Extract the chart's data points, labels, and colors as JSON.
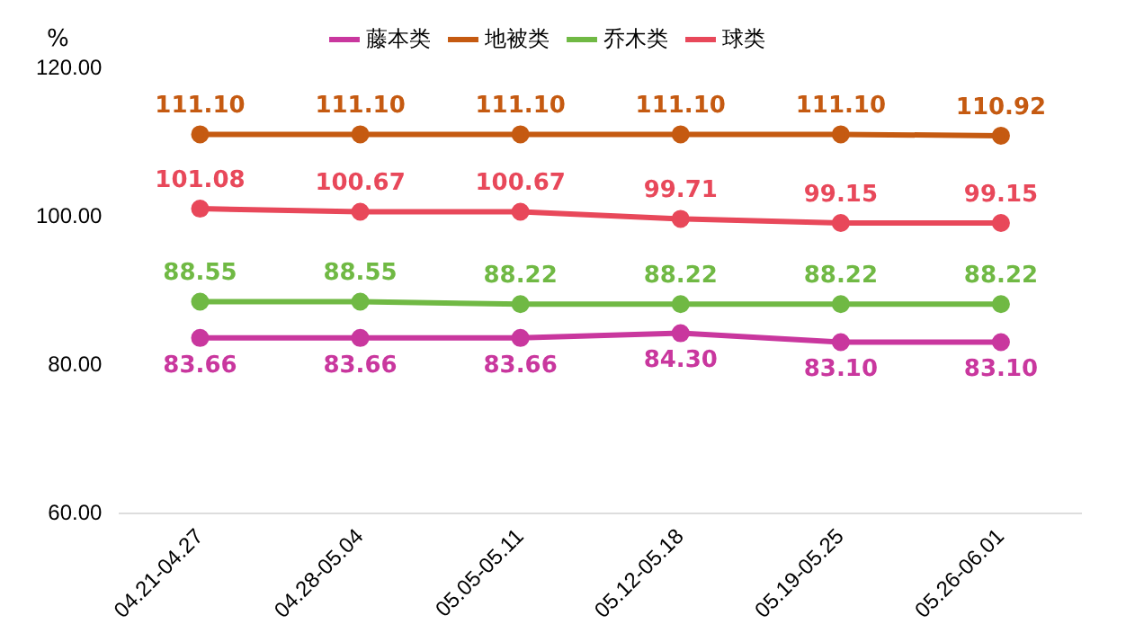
{
  "chart_data": {
    "type": "line",
    "ylabel": "%",
    "categories": [
      "04.21-04.27",
      "04.28-05.04",
      "05.05-05.11",
      "05.12-05.18",
      "05.19-05.25",
      "05.26-06.01"
    ],
    "series": [
      {
        "name": "藤本类",
        "color": "#c9379e",
        "values": [
          83.66,
          83.66,
          83.66,
          84.3,
          83.1,
          83.1
        ],
        "value_labels": [
          "83.66",
          "83.66",
          "83.66",
          "84.30",
          "83.10",
          "83.10"
        ]
      },
      {
        "name": "地被类",
        "color": "#c55a11",
        "values": [
          111.1,
          111.1,
          111.1,
          111.1,
          111.1,
          110.92
        ],
        "value_labels": [
          "111.10",
          "111.10",
          "111.10",
          "111.10",
          "111.10",
          "110.92"
        ]
      },
      {
        "name": "乔木类",
        "color": "#70b944",
        "values": [
          88.55,
          88.55,
          88.22,
          88.22,
          88.22,
          88.22
        ],
        "value_labels": [
          "88.55",
          "88.55",
          "88.22",
          "88.22",
          "88.22",
          "88.22"
        ]
      },
      {
        "name": "球类",
        "color": "#e8485a",
        "values": [
          101.08,
          100.67,
          100.67,
          99.71,
          99.15,
          99.15
        ],
        "value_labels": [
          "101.08",
          "100.67",
          "100.67",
          "99.71",
          "99.15",
          "99.15"
        ]
      }
    ],
    "ylim": [
      60,
      120
    ],
    "yticks": [
      {
        "value": 60,
        "label": "60.00"
      },
      {
        "value": 80,
        "label": "80.00"
      },
      {
        "value": 100,
        "label": "100.00"
      },
      {
        "value": 120,
        "label": "120.00"
      }
    ],
    "grid": false,
    "legend": "top",
    "marker": "circle",
    "line_style": "solid"
  }
}
